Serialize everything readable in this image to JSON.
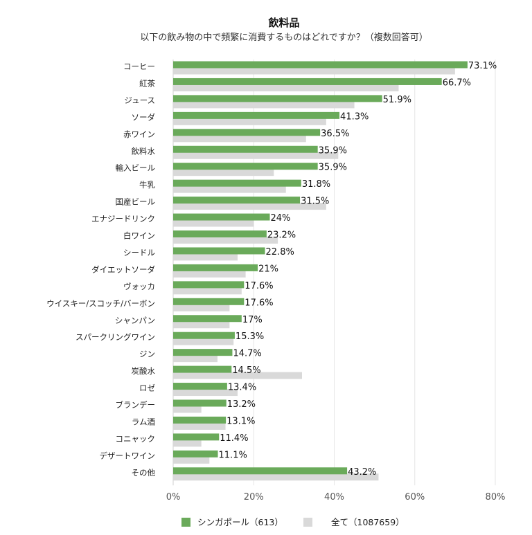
{
  "chart_data": {
    "type": "bar",
    "orientation": "horizontal",
    "title": "飲料品",
    "subtitle": "以下の飲み物の中で頻繁に消費するものはどれですか？（複数回答可）",
    "categories": [
      "コーヒー",
      "紅茶",
      "ジュース",
      "ソーダ",
      "赤ワイン",
      "飲料水",
      "輸入ビール",
      "牛乳",
      "国産ビール",
      "エナジードリンク",
      "白ワイン",
      "シードル",
      "ダイエットソーダ",
      "ヴォッカ",
      "ウイスキー/スコッチ/バーボン",
      "シャンパン",
      "スパークリングワイン",
      "ジン",
      "炭酸水",
      "ロゼ",
      "ブランデー",
      "ラム酒",
      "コニャック",
      "デザートワイン",
      "その他"
    ],
    "series": [
      {
        "name": "シンガポール（613）",
        "color": "#6aaa5a",
        "values": [
          73.1,
          66.7,
          51.9,
          41.3,
          36.5,
          35.9,
          35.9,
          31.8,
          31.5,
          24,
          23.2,
          22.8,
          21,
          17.6,
          17.6,
          17,
          15.3,
          14.7,
          14.5,
          13.4,
          13.2,
          13.1,
          11.4,
          11.1,
          43.2
        ],
        "labels": [
          "73.1%",
          "66.7%",
          "51.9%",
          "41.3%",
          "36.5%",
          "35.9%",
          "35.9%",
          "31.8%",
          "31.5%",
          "24%",
          "23.2%",
          "22.8%",
          "21%",
          "17.6%",
          "17.6%",
          "17%",
          "15.3%",
          "14.7%",
          "14.5%",
          "13.4%",
          "13.2%",
          "13.1%",
          "11.4%",
          "11.1%",
          "43.2%"
        ]
      },
      {
        "name": "全て（1087659）",
        "color": "#d9d9d9",
        "values": [
          70,
          56,
          45,
          38,
          33,
          41,
          25,
          28,
          38,
          20,
          26,
          16,
          18,
          17,
          14,
          14,
          15,
          11,
          32,
          16,
          7,
          13,
          7,
          9,
          51
        ]
      }
    ],
    "xlim": [
      0,
      80
    ],
    "xticks": [
      "0%",
      "20%",
      "40%",
      "60%",
      "80%"
    ],
    "grid": true,
    "legend": "bottom"
  }
}
